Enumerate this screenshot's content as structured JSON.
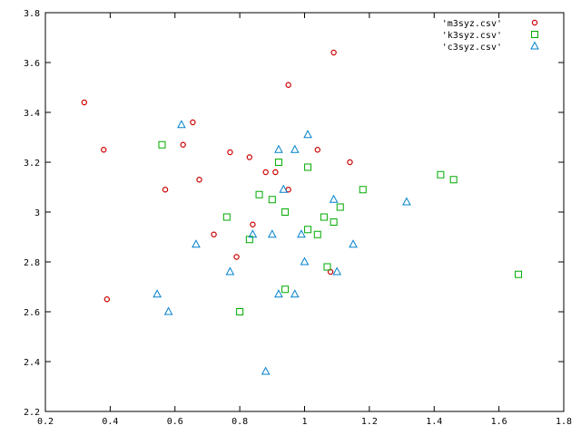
{
  "chart_data": {
    "type": "scatter",
    "xlim": [
      0.2,
      1.8
    ],
    "ylim": [
      2.2,
      3.8
    ],
    "x_ticks": [
      "0.2",
      "0.4",
      "0.6",
      "0.8",
      "1",
      "1.2",
      "1.4",
      "1.6",
      "1.8"
    ],
    "y_ticks": [
      "2.2",
      "2.4",
      "2.6",
      "2.8",
      "3",
      "3.2",
      "3.4",
      "3.6",
      "3.8"
    ],
    "grid": false,
    "legend_position": "top-right",
    "series": [
      {
        "name": "'m3syz.csv'",
        "marker": "circle",
        "color": "#cc0000",
        "points": [
          [
            0.32,
            3.44
          ],
          [
            0.38,
            3.25
          ],
          [
            0.39,
            2.65
          ],
          [
            0.57,
            3.09
          ],
          [
            0.625,
            3.27
          ],
          [
            0.655,
            3.36
          ],
          [
            0.675,
            3.13
          ],
          [
            0.72,
            2.91
          ],
          [
            0.77,
            3.24
          ],
          [
            0.79,
            2.82
          ],
          [
            0.83,
            3.22
          ],
          [
            0.84,
            2.95
          ],
          [
            0.88,
            3.16
          ],
          [
            0.91,
            3.16
          ],
          [
            0.95,
            3.09
          ],
          [
            0.95,
            3.51
          ],
          [
            1.04,
            3.25
          ],
          [
            1.08,
            2.76
          ],
          [
            1.09,
            3.64
          ],
          [
            1.14,
            3.2
          ]
        ]
      },
      {
        "name": "'k3syz.csv'",
        "marker": "square",
        "color": "#00aa00",
        "points": [
          [
            0.56,
            3.27
          ],
          [
            0.76,
            2.98
          ],
          [
            0.8,
            2.6
          ],
          [
            0.83,
            2.89
          ],
          [
            0.86,
            3.07
          ],
          [
            0.9,
            3.05
          ],
          [
            0.92,
            3.2
          ],
          [
            0.94,
            3.0
          ],
          [
            0.94,
            2.69
          ],
          [
            1.01,
            2.93
          ],
          [
            1.01,
            3.18
          ],
          [
            1.04,
            2.91
          ],
          [
            1.06,
            2.98
          ],
          [
            1.07,
            2.78
          ],
          [
            1.09,
            2.96
          ],
          [
            1.11,
            3.02
          ],
          [
            1.18,
            3.09
          ],
          [
            1.42,
            3.15
          ],
          [
            1.46,
            3.13
          ],
          [
            1.66,
            2.75
          ]
        ]
      },
      {
        "name": "'c3syz.csv'",
        "marker": "triangle",
        "color": "#0080cc",
        "points": [
          [
            0.545,
            2.67
          ],
          [
            0.58,
            2.6
          ],
          [
            0.62,
            3.35
          ],
          [
            0.665,
            2.87
          ],
          [
            0.77,
            2.76
          ],
          [
            0.84,
            2.91
          ],
          [
            0.88,
            2.36
          ],
          [
            0.9,
            2.91
          ],
          [
            0.92,
            3.25
          ],
          [
            0.92,
            2.67
          ],
          [
            0.935,
            3.09
          ],
          [
            0.97,
            3.25
          ],
          [
            0.97,
            2.67
          ],
          [
            0.99,
            2.91
          ],
          [
            1.0,
            2.8
          ],
          [
            1.01,
            3.31
          ],
          [
            1.09,
            3.05
          ],
          [
            1.1,
            2.76
          ],
          [
            1.15,
            2.87
          ],
          [
            1.315,
            3.04
          ]
        ]
      }
    ]
  }
}
